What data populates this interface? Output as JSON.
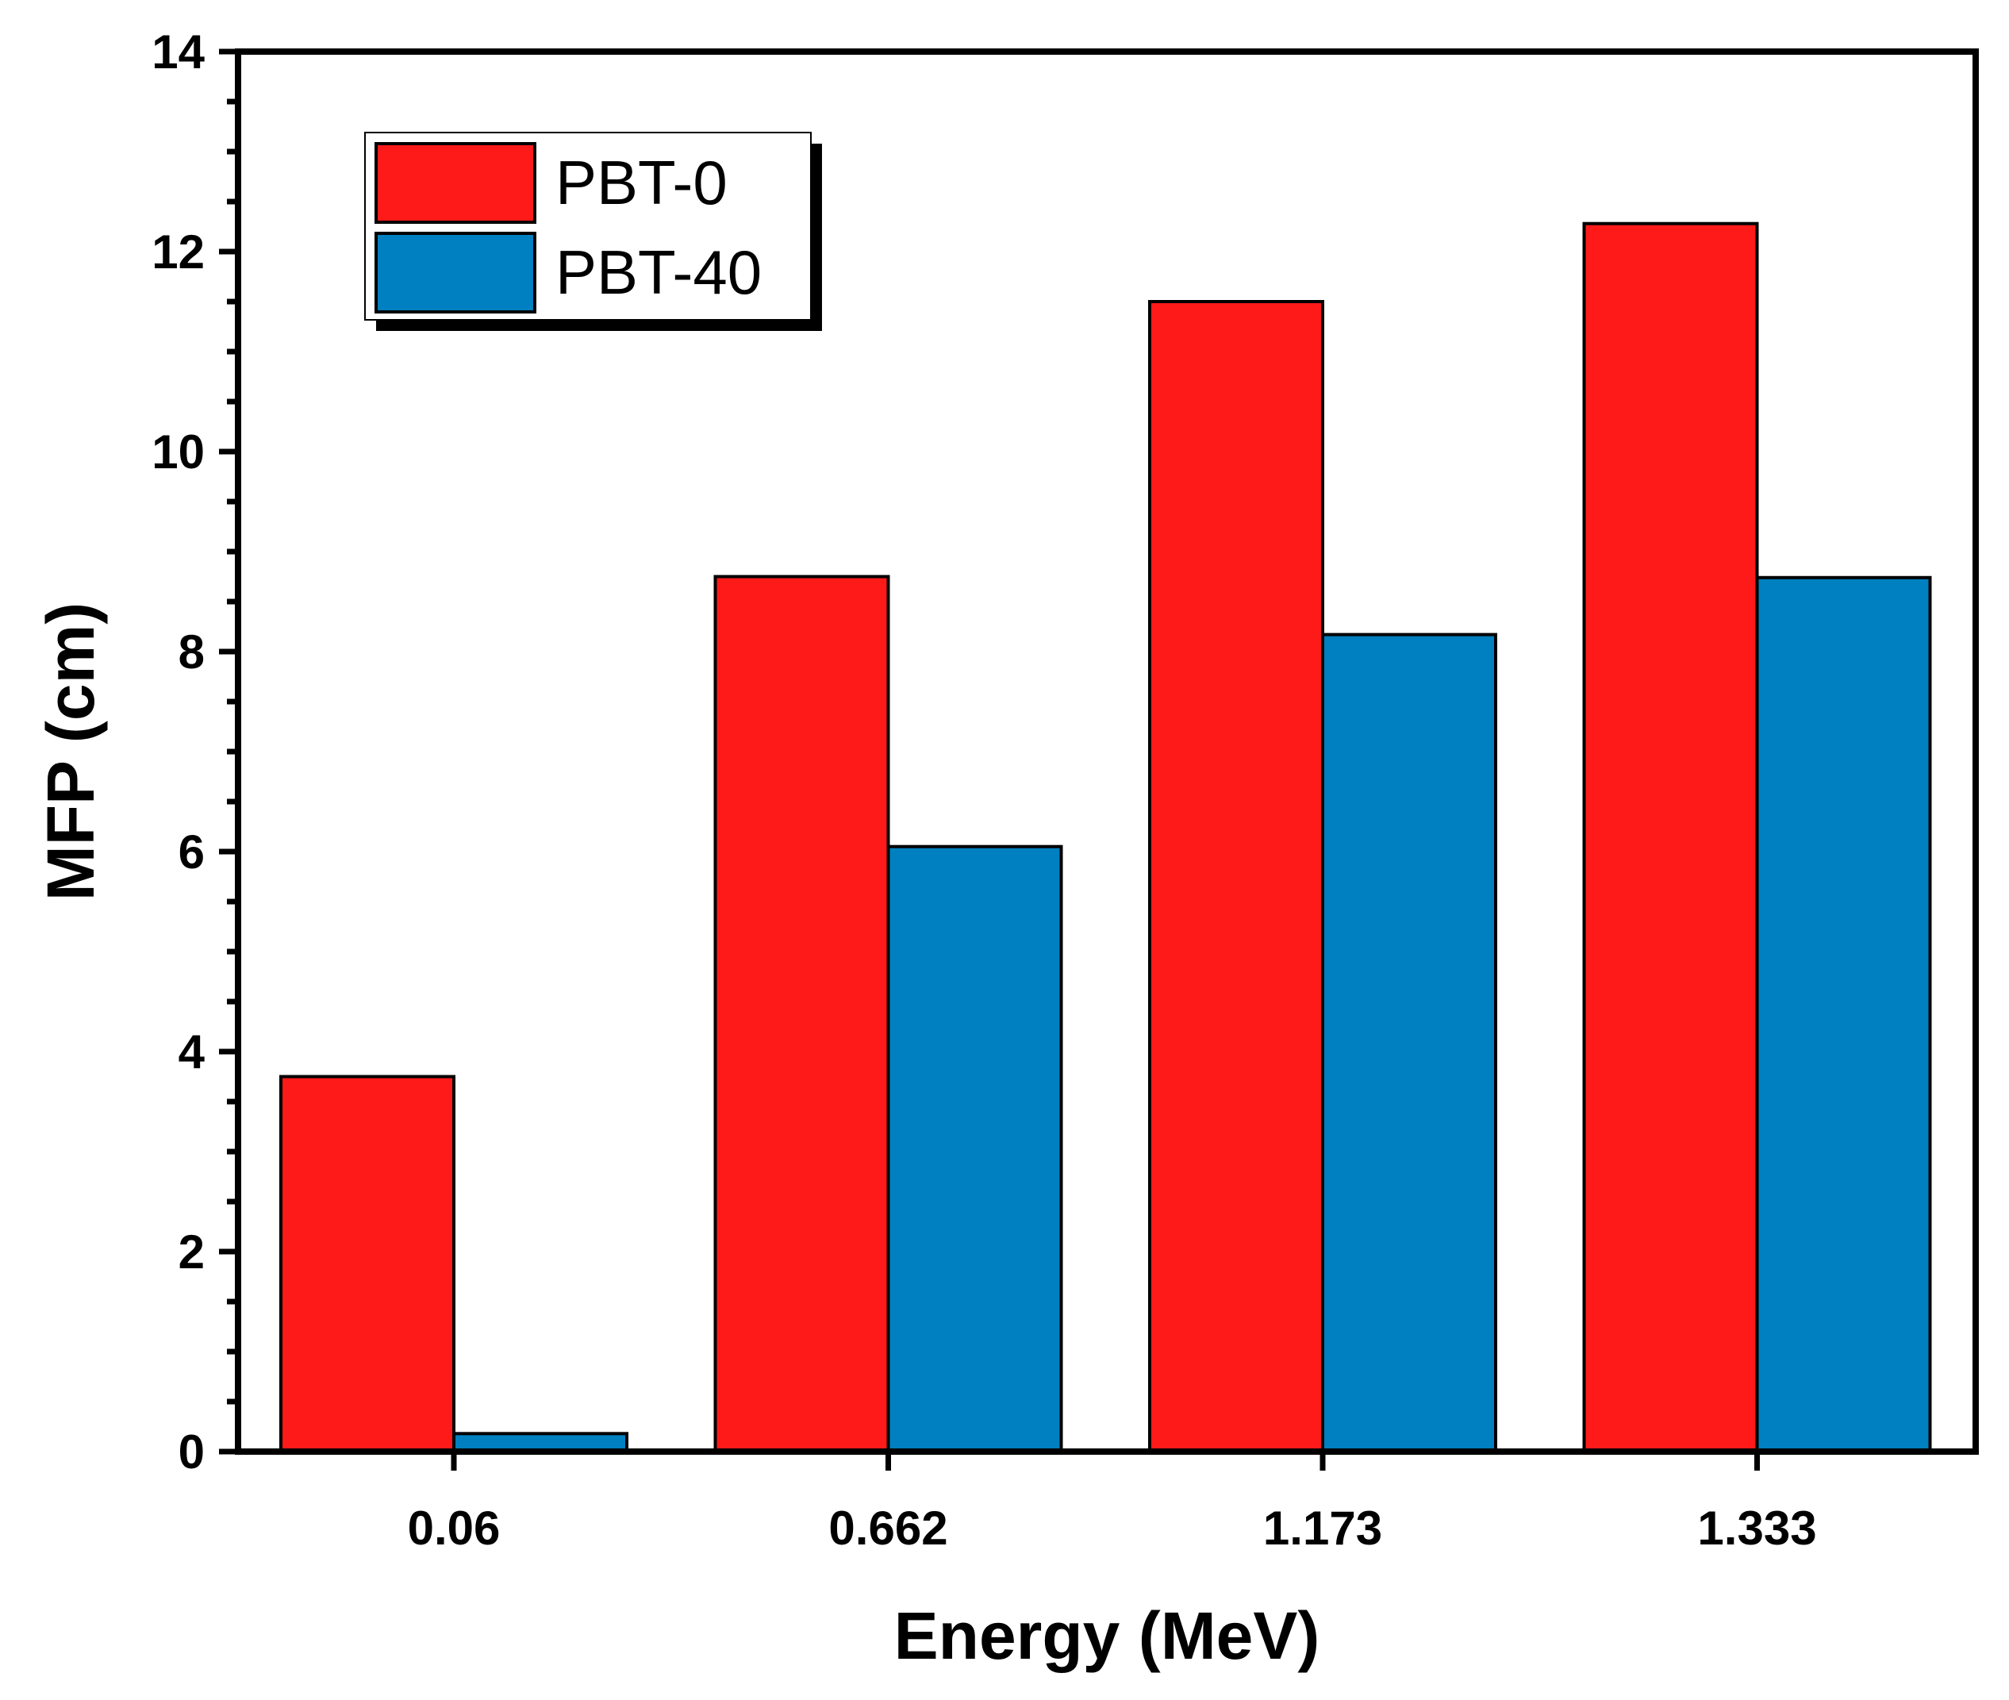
{
  "chart_data": {
    "type": "bar",
    "title": "",
    "xlabel": "Energy (MeV)",
    "ylabel": "MFP (cm)",
    "categories": [
      "0.06",
      "0.662",
      "1.173",
      "1.333"
    ],
    "series": [
      {
        "name": "PBT-0",
        "color": "#ff1a1a",
        "values": [
          3.75,
          8.75,
          11.5,
          12.28
        ]
      },
      {
        "name": "PBT-40",
        "color": "#0080c0",
        "values": [
          0.18,
          6.05,
          8.17,
          8.74
        ]
      }
    ],
    "ylim": [
      0,
      14
    ],
    "yticks": [
      "0",
      "2",
      "4",
      "6",
      "8",
      "10",
      "12",
      "14"
    ],
    "ytick_step": 2,
    "yminor_step": 0.5,
    "legend_position": "top-left",
    "grid": false
  }
}
